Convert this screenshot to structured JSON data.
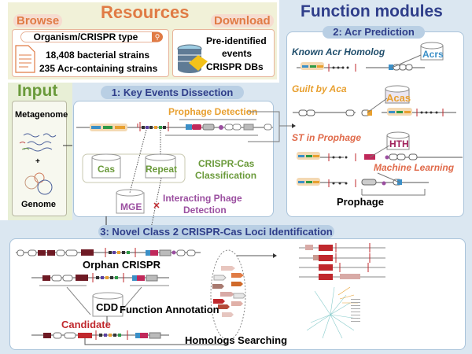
{
  "resources": {
    "title": "Resources",
    "browse": "Browse",
    "download": "Download",
    "search_placeholder": "Organism/CRISPR type",
    "stat1": "18,408  bacterial strains",
    "stat2": "235 Acr-containing strains",
    "db_line1": "Pre-identified",
    "db_line2": "events",
    "db_line3": "CRISPR DBs"
  },
  "input": {
    "title": "Input",
    "metagenome": "Metagenome",
    "plus": "+",
    "genome": "Genome"
  },
  "key_events": {
    "title": "1: Key Events Dissection",
    "prophage_detection": "Prophage Detection",
    "cas": "Cas",
    "repeat": "Repeat",
    "classification1": "CRISPR-Cas",
    "classification2": "Classification",
    "mge": "MGE",
    "phage1": "Interacting Phage",
    "phage2": "Detection"
  },
  "function_modules": {
    "title": "Function modules",
    "acr_title": "2:  Acr Prediction",
    "known": "Known Acr Homolog",
    "acrs": "Acrs",
    "guilt": "Guilt by Aca",
    "acas": "Acas",
    "st": "ST in Prophage",
    "hth": "HTH",
    "ml": "Machine Learning",
    "prophage": "Prophage"
  },
  "novel": {
    "title": "3:  Novel Class 2 CRISPR-Cas Loci Identification",
    "orphan": "Orphan CRISPR",
    "cdd": "CDD",
    "annotation": "Function Annotation",
    "candidate": "Candidate",
    "homologs": "Homologs Searching"
  },
  "colors": {
    "orange": "#e07b45",
    "navy": "#2f3e8a",
    "green": "#6a9a3a",
    "purple": "#9b4fa0",
    "red": "#c0282d",
    "panel_blue": "#dbe7f1"
  }
}
